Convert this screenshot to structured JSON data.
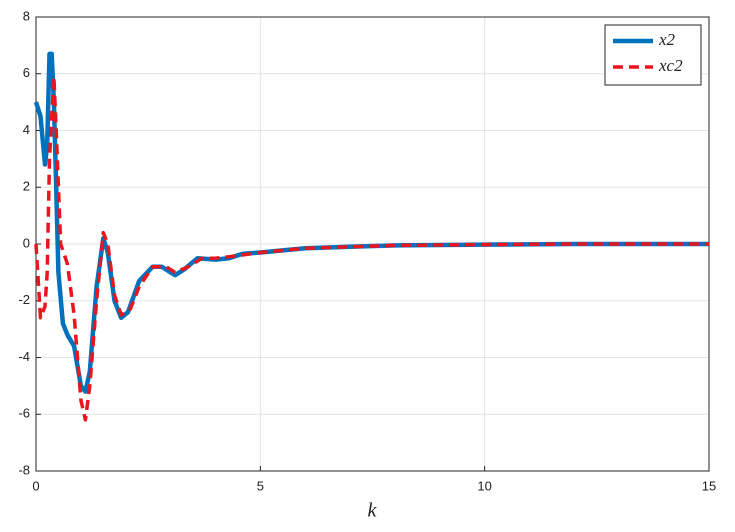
{
  "chart_data": {
    "type": "line",
    "xlabel": "k",
    "xlim": [
      0,
      15
    ],
    "ylim": [
      -8,
      8
    ],
    "xticks": [
      0,
      5,
      10,
      15
    ],
    "yticks": [
      -8,
      -6,
      -4,
      -2,
      0,
      2,
      4,
      6,
      8
    ],
    "grid": true,
    "legend": "upper right",
    "series": [
      {
        "name": "x2",
        "color": "#0072bd",
        "dash": "solid",
        "x": [
          0,
          0.1,
          0.2,
          0.25,
          0.3,
          0.35,
          0.4,
          0.45,
          0.5,
          0.6,
          0.7,
          0.85,
          1.0,
          1.1,
          1.2,
          1.35,
          1.5,
          1.6,
          1.75,
          1.9,
          2.05,
          2.3,
          2.6,
          2.8,
          3.1,
          3.3,
          3.6,
          4.0,
          4.3,
          4.6,
          5,
          6,
          7,
          8,
          10,
          12,
          15
        ],
        "values": [
          5,
          4.5,
          2.8,
          3.5,
          6.7,
          6.7,
          5,
          2,
          -1,
          -2.8,
          -3.2,
          -3.6,
          -5.0,
          -5.2,
          -4.5,
          -1.5,
          0.2,
          -0.3,
          -2.0,
          -2.6,
          -2.4,
          -1.3,
          -0.8,
          -0.8,
          -1.1,
          -0.9,
          -0.5,
          -0.55,
          -0.5,
          -0.35,
          -0.3,
          -0.15,
          -0.1,
          -0.05,
          -0.02,
          0,
          0
        ]
      },
      {
        "name": "xc2",
        "color": "#e8161e",
        "dash": "dashed",
        "x": [
          0,
          0.1,
          0.2,
          0.25,
          0.3,
          0.4,
          0.45,
          0.55,
          0.7,
          0.85,
          1.0,
          1.1,
          1.2,
          1.35,
          1.5,
          1.6,
          1.75,
          1.9,
          2.1,
          2.3,
          2.6,
          2.9,
          3.1,
          3.4,
          3.7,
          4.0,
          4.3,
          5,
          6,
          7,
          8,
          10,
          12,
          15
        ],
        "values": [
          0,
          -2.6,
          -2.2,
          -1,
          3,
          5.9,
          4,
          0,
          -0.7,
          -2.5,
          -5.5,
          -6.2,
          -5,
          -2,
          0.4,
          0,
          -1.8,
          -2.5,
          -2.3,
          -1.5,
          -0.8,
          -0.8,
          -1.0,
          -0.8,
          -0.5,
          -0.5,
          -0.45,
          -0.3,
          -0.15,
          -0.1,
          -0.05,
          -0.02,
          0,
          0
        ]
      }
    ]
  }
}
